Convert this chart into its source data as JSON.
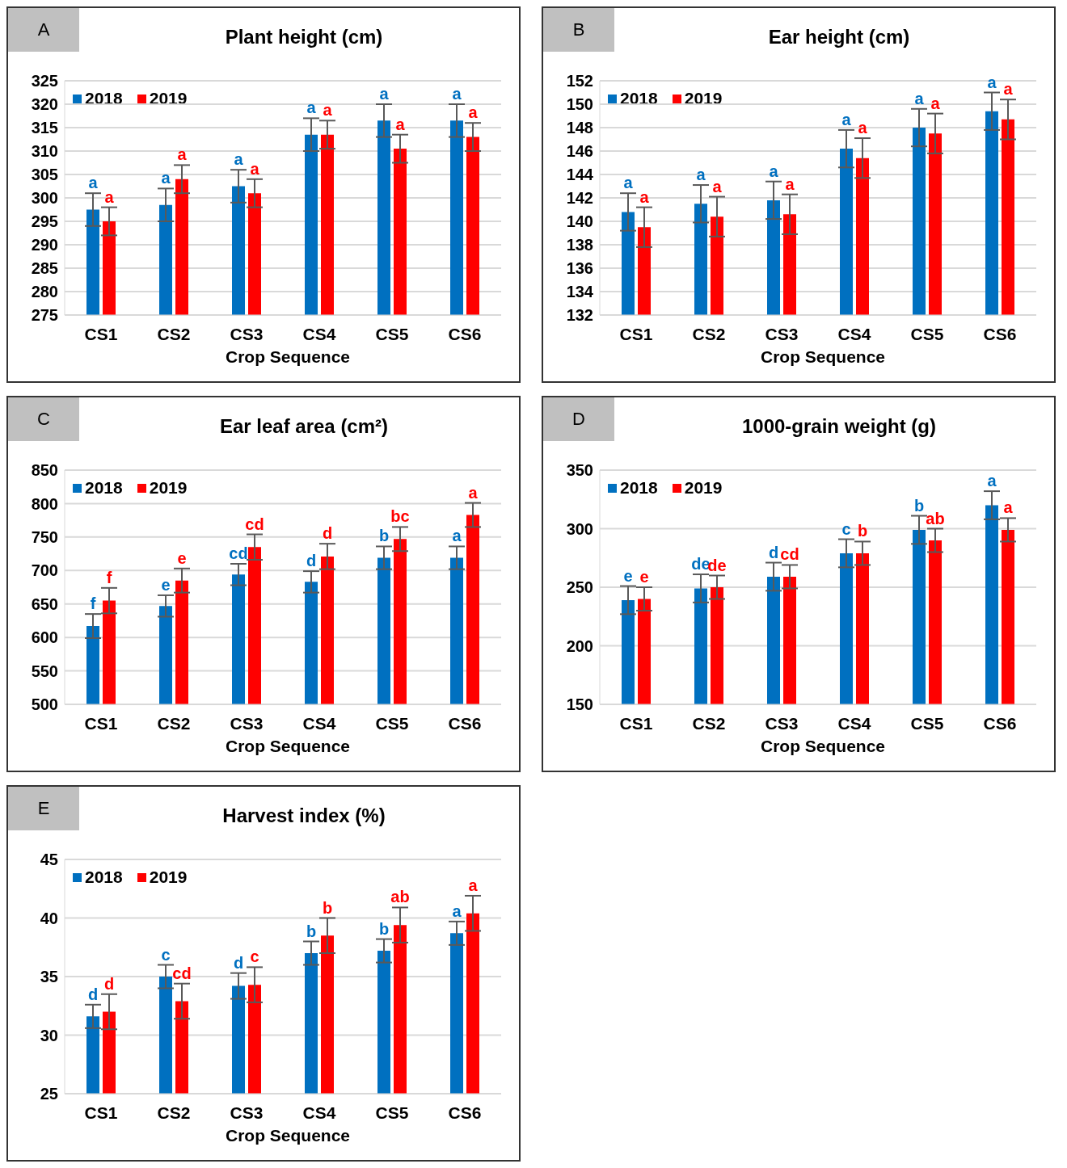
{
  "chart_data": [
    {
      "type": "bar",
      "title": "Plant height (cm)",
      "xlabel": "Crop Sequence",
      "annotations": [
        "A"
      ],
      "categories": [
        "CS1",
        "CS2",
        "CS3",
        "CS4",
        "CS5",
        "CS6"
      ],
      "ylim": [
        275,
        325
      ],
      "yticks": [
        275,
        280,
        285,
        290,
        295,
        300,
        305,
        310,
        315,
        320,
        325
      ],
      "grid": "y",
      "legend": "top left",
      "series": [
        {
          "name": "2018",
          "color": "#0070c0",
          "values": [
            297.5,
            298.5,
            302.5,
            313.5,
            316.5,
            316.5
          ],
          "errors": [
            3.5,
            3.5,
            3.5,
            3.5,
            3.5,
            3.5
          ],
          "value_labels": [
            "a",
            "a",
            "a",
            "a",
            "a",
            "a"
          ]
        },
        {
          "name": "2019",
          "color": "#ff0000",
          "values": [
            295,
            304,
            301,
            313.5,
            310.5,
            313
          ],
          "errors": [
            3,
            3,
            3,
            3,
            3,
            3
          ],
          "value_labels": [
            "a",
            "a",
            "a",
            "a",
            "a",
            "a"
          ]
        }
      ]
    },
    {
      "type": "bar",
      "title": "Ear height (cm)",
      "xlabel": "Crop Sequence",
      "annotations": [
        "B"
      ],
      "categories": [
        "CS1",
        "CS2",
        "CS3",
        "CS4",
        "CS5",
        "CS6"
      ],
      "ylim": [
        132,
        152
      ],
      "yticks": [
        132,
        134,
        136,
        138,
        140,
        142,
        144,
        146,
        148,
        150,
        152
      ],
      "grid": "y",
      "legend": "top left",
      "series": [
        {
          "name": "2018",
          "color": "#0070c0",
          "values": [
            140.8,
            141.5,
            141.8,
            146.2,
            148,
            149.4
          ],
          "errors": [
            1.6,
            1.6,
            1.6,
            1.6,
            1.6,
            1.6
          ],
          "value_labels": [
            "a",
            "a",
            "a",
            "a",
            "a",
            "a"
          ]
        },
        {
          "name": "2019",
          "color": "#ff0000",
          "values": [
            139.5,
            140.4,
            140.6,
            145.4,
            147.5,
            148.7
          ],
          "errors": [
            1.7,
            1.7,
            1.7,
            1.7,
            1.7,
            1.7
          ],
          "value_labels": [
            "a",
            "a",
            "a",
            "a",
            "a",
            "a"
          ]
        }
      ]
    },
    {
      "type": "bar",
      "title": "Ear leaf area (cm²)",
      "xlabel": "Crop Sequence",
      "annotations": [
        "C"
      ],
      "categories": [
        "CS1",
        "CS2",
        "CS3",
        "CS4",
        "CS5",
        "CS6"
      ],
      "ylim": [
        500,
        850
      ],
      "yticks": [
        500,
        550,
        600,
        650,
        700,
        750,
        800,
        850
      ],
      "grid": "y",
      "legend": "top left",
      "series": [
        {
          "name": "2018",
          "color": "#0070c0",
          "values": [
            617,
            647,
            694,
            683,
            719,
            719
          ],
          "errors": [
            18,
            16,
            16,
            16,
            17,
            17
          ],
          "value_labels": [
            "f",
            "e",
            "cd",
            "d",
            "b",
            "a"
          ]
        },
        {
          "name": "2019",
          "color": "#ff0000",
          "values": [
            655,
            685,
            735,
            721,
            747,
            783
          ],
          "errors": [
            19,
            18,
            19,
            19,
            18,
            18
          ],
          "value_labels": [
            "f",
            "e",
            "cd",
            "d",
            "bc",
            "a"
          ]
        }
      ]
    },
    {
      "type": "bar",
      "title": "1000-grain weight (g)",
      "xlabel": "Crop Sequence",
      "annotations": [
        "D"
      ],
      "categories": [
        "CS1",
        "CS2",
        "CS3",
        "CS4",
        "CS5",
        "CS6"
      ],
      "ylim": [
        150,
        350
      ],
      "yticks": [
        150,
        200,
        250,
        300,
        350
      ],
      "grid": "y",
      "legend": "top left",
      "series": [
        {
          "name": "2018",
          "color": "#0070c0",
          "values": [
            239,
            249,
            259,
            279,
            299,
            320
          ],
          "errors": [
            12,
            12,
            12,
            12,
            12,
            12
          ],
          "value_labels": [
            "e",
            "de",
            "d",
            "c",
            "b",
            "a"
          ]
        },
        {
          "name": "2019",
          "color": "#ff0000",
          "values": [
            240,
            250,
            259,
            279,
            290,
            299
          ],
          "errors": [
            10,
            10,
            10,
            10,
            10,
            10
          ],
          "value_labels": [
            "e",
            "de",
            "cd",
            "b",
            "ab",
            "a"
          ]
        }
      ]
    },
    {
      "type": "bar",
      "title": "Harvest index (%)",
      "xlabel": "Crop Sequence",
      "annotations": [
        "E"
      ],
      "categories": [
        "CS1",
        "CS2",
        "CS3",
        "CS4",
        "CS5",
        "CS6"
      ],
      "ylim": [
        25,
        45
      ],
      "yticks": [
        25,
        30,
        35,
        40,
        45
      ],
      "grid": "y",
      "legend": "top left",
      "series": [
        {
          "name": "2018",
          "color": "#0070c0",
          "values": [
            31.6,
            35,
            34.2,
            37,
            37.2,
            38.7
          ],
          "errors": [
            1,
            1,
            1.1,
            1,
            1,
            1
          ],
          "value_labels": [
            "d",
            "c",
            "d",
            "b",
            "b",
            "a"
          ]
        },
        {
          "name": "2019",
          "color": "#ff0000",
          "values": [
            32,
            32.9,
            34.3,
            38.5,
            39.4,
            40.4
          ],
          "errors": [
            1.5,
            1.5,
            1.5,
            1.5,
            1.5,
            1.5
          ],
          "value_labels": [
            "d",
            "cd",
            "c",
            "b",
            "ab",
            "a"
          ]
        }
      ]
    }
  ]
}
